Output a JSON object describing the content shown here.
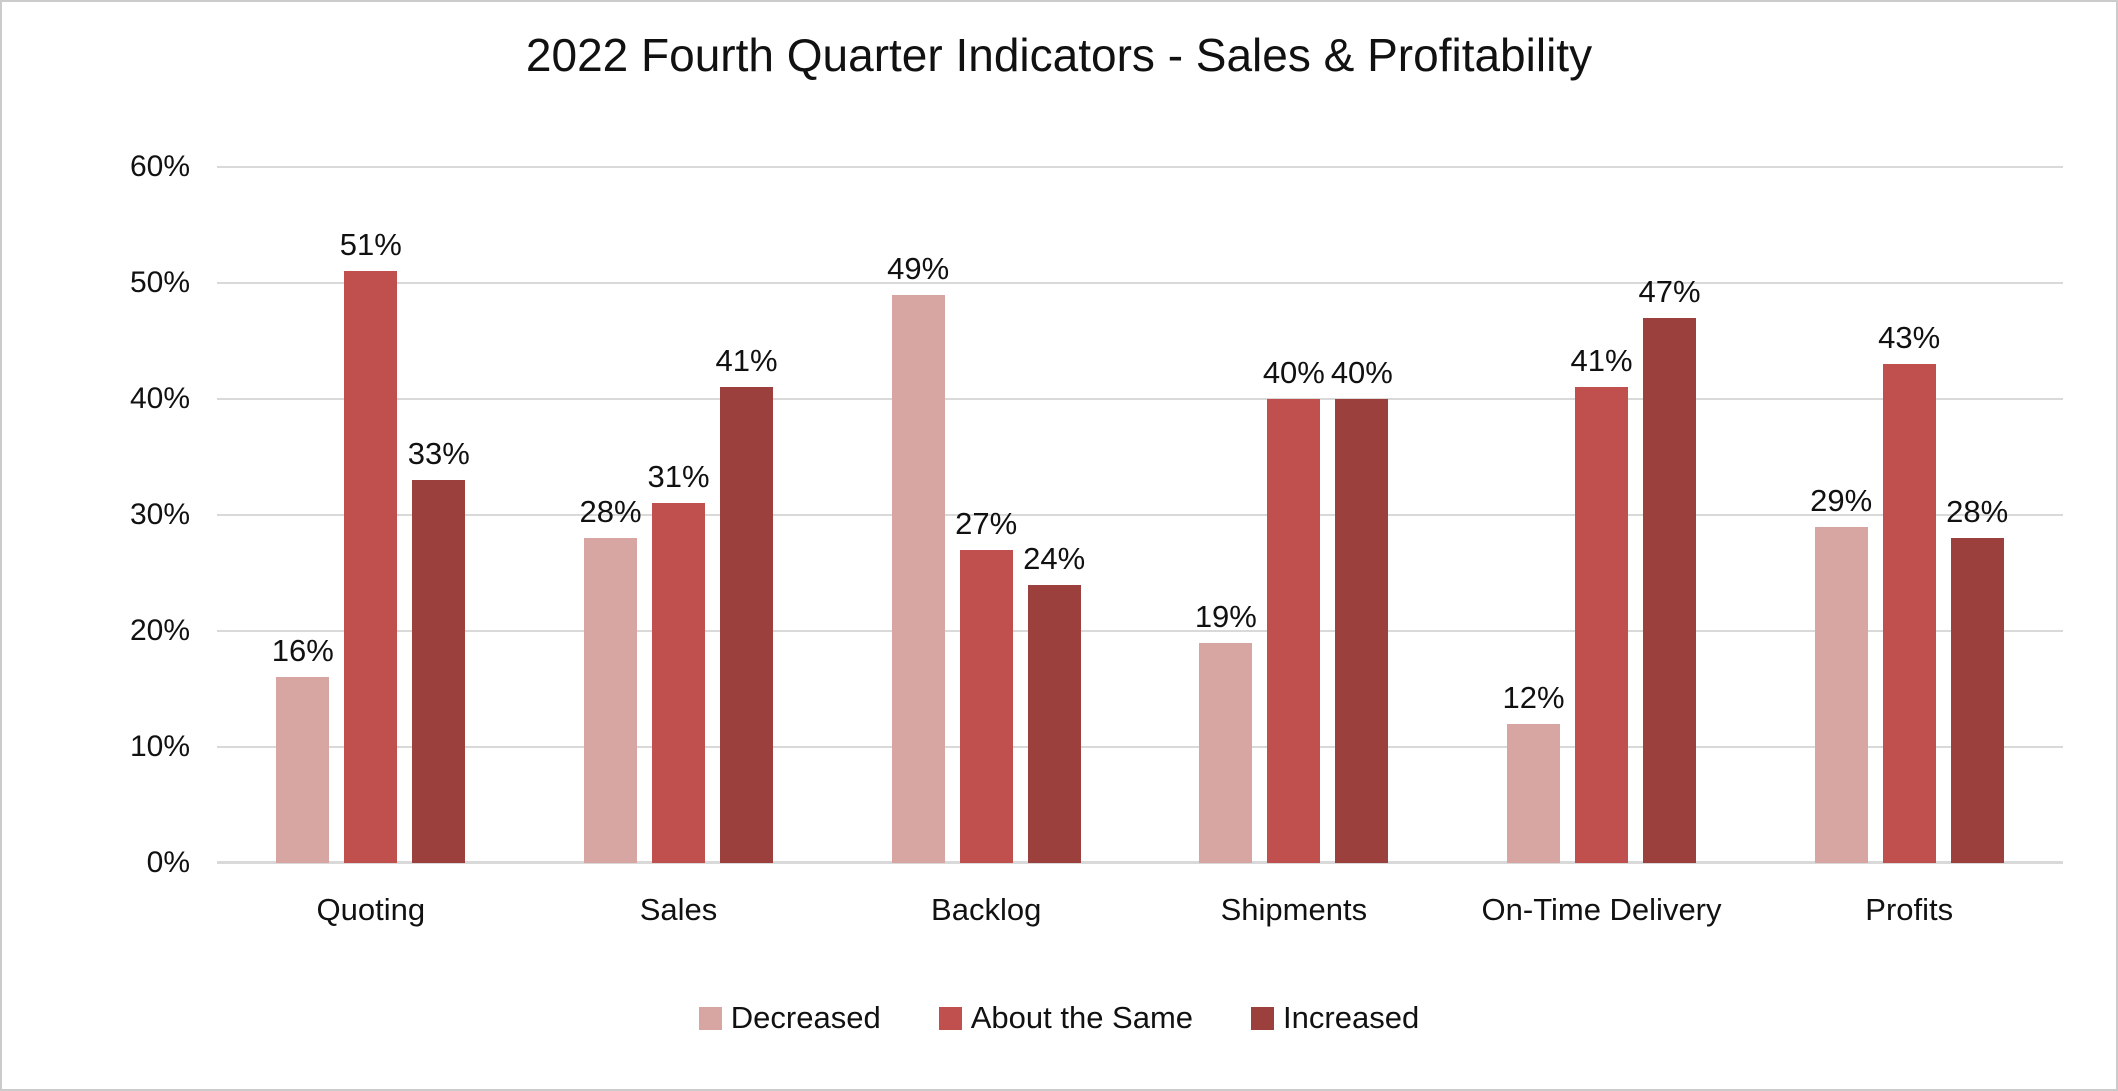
{
  "title": "2022 Fourth Quarter Indicators - Sales & Profitability",
  "chart_data": {
    "type": "bar",
    "title": "2022 Fourth Quarter Indicators - Sales & Profitability",
    "categories": [
      "Quoting",
      "Sales",
      "Backlog",
      "Shipments",
      "On-Time Delivery",
      "Profits"
    ],
    "series": [
      {
        "name": "Decreased",
        "color": "#D8A6A2",
        "values": [
          16,
          28,
          49,
          19,
          12,
          29
        ]
      },
      {
        "name": "About the Same",
        "color": "#C0504D",
        "values": [
          51,
          31,
          27,
          40,
          41,
          43
        ]
      },
      {
        "name": "Increased",
        "color": "#9C403E",
        "values": [
          33,
          41,
          24,
          40,
          47,
          28
        ]
      }
    ],
    "value_suffix": "%",
    "xlabel": "",
    "ylabel": "",
    "ylim": [
      0,
      60
    ],
    "ytick_step": 10,
    "ytick_labels": [
      "0%",
      "10%",
      "20%",
      "30%",
      "40%",
      "50%",
      "60%"
    ],
    "grid": true,
    "gridline_color": "#D9D9D9",
    "legend_position": "bottom"
  }
}
